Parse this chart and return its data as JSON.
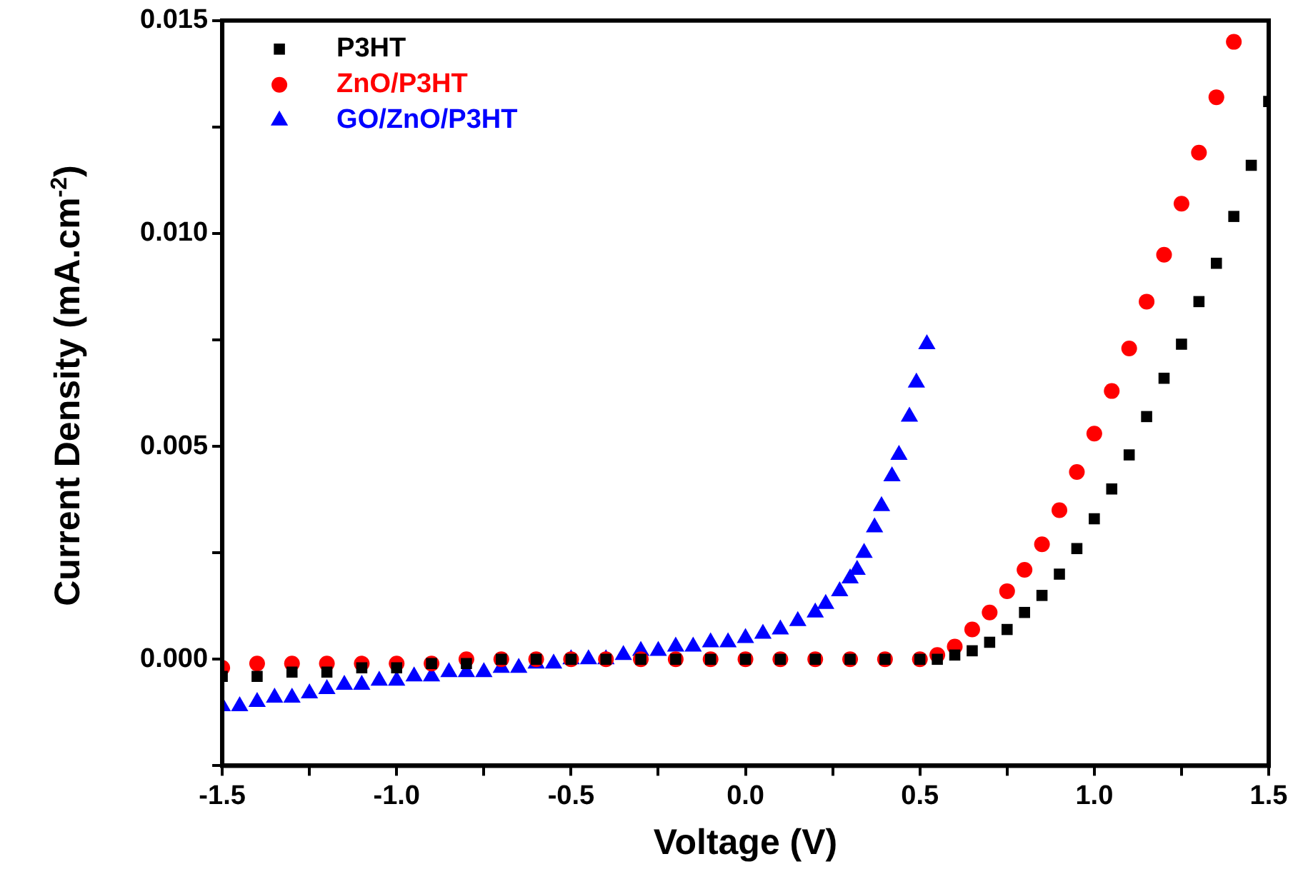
{
  "chart_data": {
    "type": "scatter",
    "xlabel": "Voltage (V)",
    "ylabel": "Current Density (mA.cm$^{-2}$)",
    "xlim": [
      -1.5,
      1.5
    ],
    "xticks": [
      -1.5,
      {
        "value": -1.25,
        "label": null
      },
      "-1.0",
      {
        "value": -0.75,
        "label": null
      },
      -0.5,
      {
        "value": -0.25,
        "label": null
      },
      {
        "value": 0,
        "label": "0.0"
      },
      {
        "value": 0.25,
        "label": null
      },
      0.5,
      {
        "value": 0.75,
        "label": null
      },
      {
        "value": 1,
        "label": "1.0"
      },
      {
        "value": 1.25,
        "label": null
      },
      1.5
    ],
    "ylim": [
      -0.0025,
      0.015
    ],
    "yticks": [
      {
        "value": -0.0025,
        "label": null
      },
      {
        "value": 0,
        "label": "0.000"
      },
      {
        "value": 0.0025,
        "label": null
      },
      {
        "value": 0.005,
        "label": "0.005"
      },
      {
        "value": 0.0075,
        "label": null
      },
      {
        "value": 0.01,
        "label": "0.010"
      },
      {
        "value": 0.0125,
        "label": null
      },
      {
        "value": 0.015,
        "label": "0.015"
      }
    ],
    "grid": false,
    "legend": "top left",
    "series": [
      {
        "name": "P3HT",
        "color": "#000000",
        "marker": "square",
        "x": [
          -1.5,
          -1.4,
          -1.3,
          -1.2,
          -1.1,
          -1.0,
          -0.9,
          -0.8,
          -0.7,
          -0.6,
          -0.5,
          -0.4,
          -0.3,
          -0.2,
          -0.1,
          0,
          0.1,
          0.2,
          0.3,
          0.4,
          0.5,
          0.55,
          0.6,
          0.65,
          0.7,
          0.75,
          0.8,
          0.85,
          0.9,
          0.95,
          1.0,
          1.05,
          1.1,
          1.15,
          1.2,
          1.25,
          1.3,
          1.35,
          1.4,
          1.45,
          1.5
        ],
        "values": [
          -0.0004,
          -0.0004,
          -0.0003,
          -0.0003,
          -0.0002,
          -0.0002,
          -0.0001,
          -0.0001,
          0,
          0,
          0,
          0,
          0,
          0,
          0,
          0,
          0,
          0,
          0,
          0,
          0,
          0,
          0.0001,
          0.0002,
          0.0004,
          0.0007,
          0.0011,
          0.0015,
          0.002,
          0.0026,
          0.0033,
          0.004,
          0.0048,
          0.0057,
          0.0066,
          0.0074,
          0.0084,
          0.0093,
          0.0104,
          0.0116,
          0.0131
        ]
      },
      {
        "name": "ZnO/P3HT",
        "color": "#ff0000",
        "marker": "circle",
        "x": [
          -1.5,
          -1.4,
          -1.3,
          -1.2,
          -1.1,
          -1.0,
          -0.9,
          -0.8,
          -0.7,
          -0.6,
          -0.5,
          -0.4,
          -0.3,
          -0.2,
          -0.1,
          0,
          0.1,
          0.2,
          0.3,
          0.4,
          0.5,
          0.55,
          0.6,
          0.65,
          0.7,
          0.75,
          0.8,
          0.85,
          0.9,
          0.95,
          1.0,
          1.05,
          1.1,
          1.15,
          1.2,
          1.25,
          1.3,
          1.35,
          1.4
        ],
        "values": [
          -0.0002,
          -0.0001,
          -0.0001,
          -0.0001,
          -0.0001,
          -0.0001,
          -0.0001,
          0,
          0,
          0,
          0,
          0,
          0,
          0,
          0,
          0,
          0,
          0,
          0,
          0,
          0,
          0.0001,
          0.0003,
          0.0007,
          0.0011,
          0.0016,
          0.0021,
          0.0027,
          0.0035,
          0.0044,
          0.0053,
          0.0063,
          0.0073,
          0.0084,
          0.0095,
          0.0107,
          0.0119,
          0.0132,
          0.0145
        ]
      },
      {
        "name": "GO/ZnO/P3HT",
        "color": "#0000ff",
        "marker": "triangle",
        "x": [
          -1.5,
          -1.45,
          -1.4,
          -1.35,
          -1.3,
          -1.25,
          -1.2,
          -1.15,
          -1.1,
          -1.05,
          -1.0,
          -0.95,
          -0.9,
          -0.85,
          -0.8,
          -0.75,
          -0.7,
          -0.65,
          -0.6,
          -0.55,
          -0.5,
          -0.45,
          -0.4,
          -0.35,
          -0.3,
          -0.25,
          -0.2,
          -0.15,
          -0.1,
          -0.05,
          0,
          0.05,
          0.1,
          0.15,
          0.2,
          0.23,
          0.27,
          0.3,
          0.32,
          0.34,
          0.37,
          0.39,
          0.42,
          0.44,
          0.47,
          0.49,
          0.52
        ],
        "values": [
          -0.0011,
          -0.0011,
          -0.001,
          -0.0009,
          -0.0009,
          -0.0008,
          -0.0007,
          -0.0006,
          -0.0006,
          -0.0005,
          -0.0005,
          -0.0004,
          -0.0004,
          -0.0003,
          -0.0003,
          -0.0003,
          -0.0002,
          -0.0002,
          -0.0001,
          -0.0001,
          0,
          0,
          0,
          0.0001,
          0.0002,
          0.0002,
          0.0003,
          0.0003,
          0.0004,
          0.0004,
          0.0005,
          0.0006,
          0.0007,
          0.0009,
          0.0011,
          0.0013,
          0.0016,
          0.0019,
          0.0021,
          0.0025,
          0.0031,
          0.0036,
          0.0043,
          0.0048,
          0.0057,
          0.0065,
          0.0074
        ]
      }
    ]
  }
}
